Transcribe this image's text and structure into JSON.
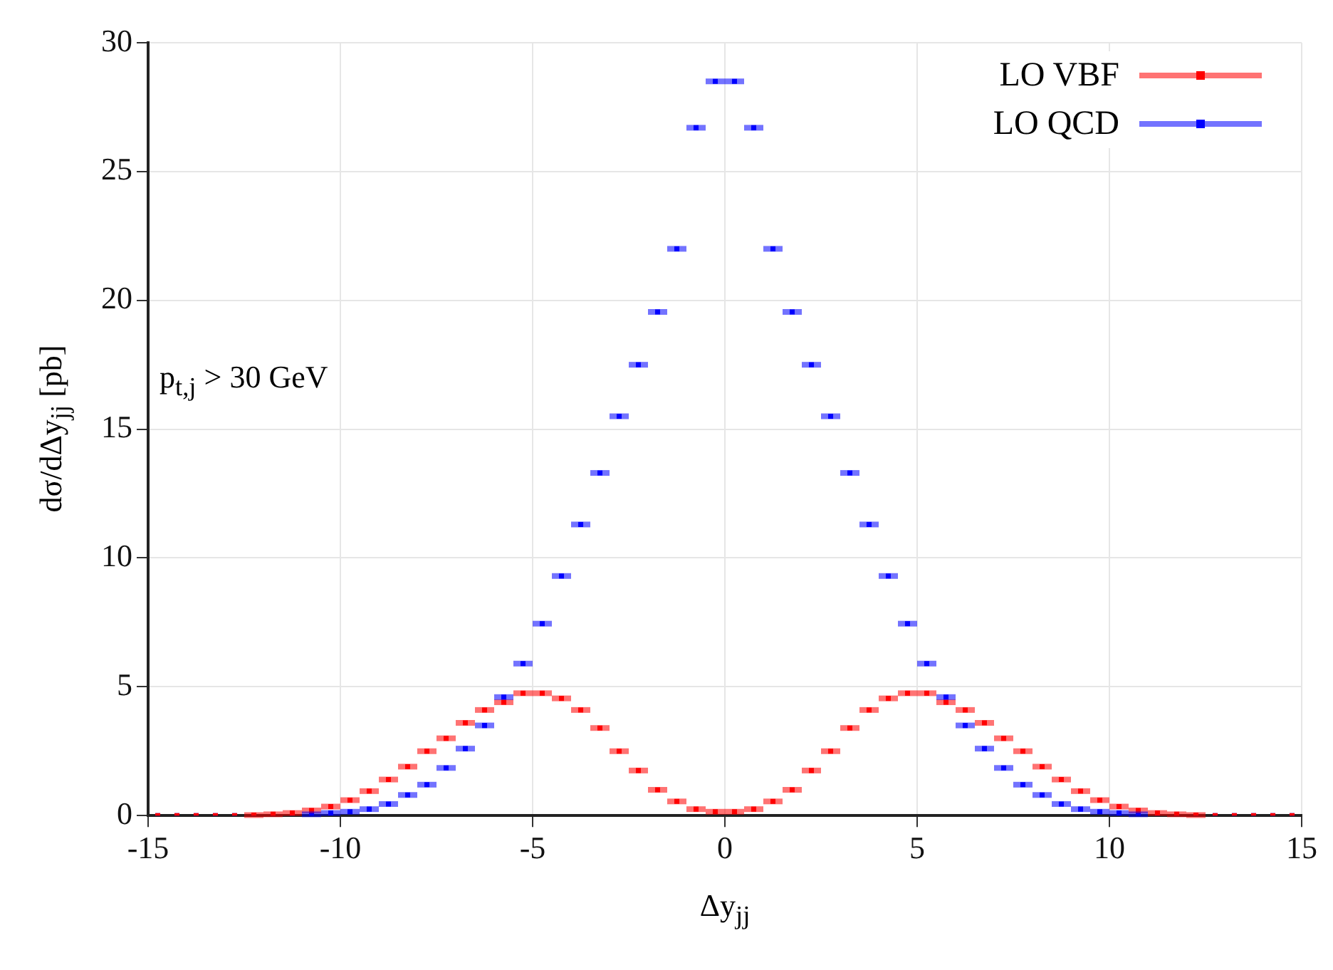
{
  "chart_data": {
    "type": "scatter",
    "xlabel": "Δy$_{jj}$",
    "ylabel": "dσ/dΔy$_{jj}$ [pb]",
    "annotations": [
      "p$_{t,j}$ > 30 GeV"
    ],
    "x": [
      -14.75,
      -14.25,
      -13.75,
      -13.25,
      -12.75,
      -12.25,
      -11.75,
      -11.25,
      -10.75,
      -10.25,
      -9.75,
      -9.25,
      -8.75,
      -8.25,
      -7.75,
      -7.25,
      -6.75,
      -6.25,
      -5.75,
      -5.25,
      -4.75,
      -4.25,
      -3.75,
      -3.25,
      -2.75,
      -2.25,
      -1.75,
      -1.25,
      -0.75,
      -0.25,
      0.25,
      0.75,
      1.25,
      1.75,
      2.25,
      2.75,
      3.25,
      3.75,
      4.25,
      4.75,
      5.25,
      5.75,
      6.25,
      6.75,
      7.25,
      7.75,
      8.25,
      8.75,
      9.25,
      9.75,
      10.25,
      10.75,
      11.25,
      11.75,
      12.25,
      12.75,
      13.25,
      13.75,
      14.25,
      14.75
    ],
    "series": [
      {
        "name": "LO VBF",
        "color": "#ff0000",
        "values": [
          0,
          0,
          0,
          0,
          0,
          0.02,
          0.05,
          0.1,
          0.2,
          0.35,
          0.6,
          0.95,
          1.4,
          1.9,
          2.5,
          3.0,
          3.6,
          4.1,
          4.4,
          4.75,
          4.75,
          4.55,
          4.1,
          3.4,
          2.5,
          1.75,
          1.0,
          0.55,
          0.25,
          0.15,
          0.15,
          0.25,
          0.55,
          1.0,
          1.75,
          2.5,
          3.4,
          4.1,
          4.55,
          4.75,
          4.75,
          4.4,
          4.1,
          3.6,
          3.0,
          2.5,
          1.9,
          1.4,
          0.95,
          0.6,
          0.35,
          0.2,
          0.1,
          0.05,
          0.02,
          0,
          0,
          0,
          0,
          0
        ],
        "xerrors": [
          null,
          null,
          null,
          null,
          null,
          0.25,
          0.25,
          0.25,
          0.25,
          0.25,
          0.25,
          0.25,
          0.25,
          0.25,
          0.25,
          0.25,
          0.25,
          0.25,
          0.25,
          0.25,
          0.25,
          0.25,
          0.25,
          0.25,
          0.25,
          0.25,
          0.25,
          0.25,
          0.25,
          0.25,
          0.25,
          0.25,
          0.25,
          0.25,
          0.25,
          0.25,
          0.25,
          0.25,
          0.25,
          0.25,
          0.25,
          0.25,
          0.25,
          0.25,
          0.25,
          0.25,
          0.25,
          0.25,
          0.25,
          0.25,
          0.25,
          0.25,
          0.25,
          0.25,
          0.25,
          null,
          null,
          null,
          null,
          null
        ]
      },
      {
        "name": "LO QCD",
        "color": "#0000ff",
        "values": [
          0,
          0,
          0,
          0,
          0,
          0,
          0,
          0,
          0.05,
          0.1,
          0.15,
          0.25,
          0.45,
          0.8,
          1.2,
          1.85,
          2.6,
          3.5,
          4.6,
          5.9,
          7.45,
          9.3,
          11.3,
          13.3,
          15.5,
          17.5,
          19.55,
          22.0,
          26.7,
          28.5,
          28.5,
          26.7,
          22.0,
          19.55,
          17.5,
          15.5,
          13.3,
          11.3,
          9.3,
          7.45,
          5.9,
          4.6,
          3.5,
          2.6,
          1.85,
          1.2,
          0.8,
          0.45,
          0.25,
          0.15,
          0.1,
          0.05,
          0,
          0,
          0,
          0,
          0,
          0,
          0,
          0
        ],
        "xerrors": [
          null,
          null,
          null,
          null,
          null,
          null,
          null,
          null,
          0.25,
          0.25,
          0.25,
          0.25,
          0.25,
          0.25,
          0.25,
          0.25,
          0.25,
          0.25,
          0.25,
          0.25,
          0.25,
          0.25,
          0.25,
          0.25,
          0.25,
          0.25,
          0.25,
          0.25,
          0.25,
          0.25,
          0.25,
          0.25,
          0.25,
          0.25,
          0.25,
          0.25,
          0.25,
          0.25,
          0.25,
          0.25,
          0.25,
          0.25,
          0.25,
          0.25,
          0.25,
          0.25,
          0.25,
          0.25,
          0.25,
          0.25,
          0.25,
          0.25,
          null,
          null,
          null,
          null,
          null,
          null,
          null,
          null
        ]
      }
    ],
    "xlim": [
      -15,
      15
    ],
    "xticks": [
      -15,
      -10,
      -5,
      0,
      5,
      10,
      15
    ],
    "ylim": [
      0,
      30
    ],
    "yticks": [
      0,
      5,
      10,
      15,
      20,
      25,
      30
    ],
    "grid": true,
    "legend": "top right",
    "marker": "square"
  }
}
